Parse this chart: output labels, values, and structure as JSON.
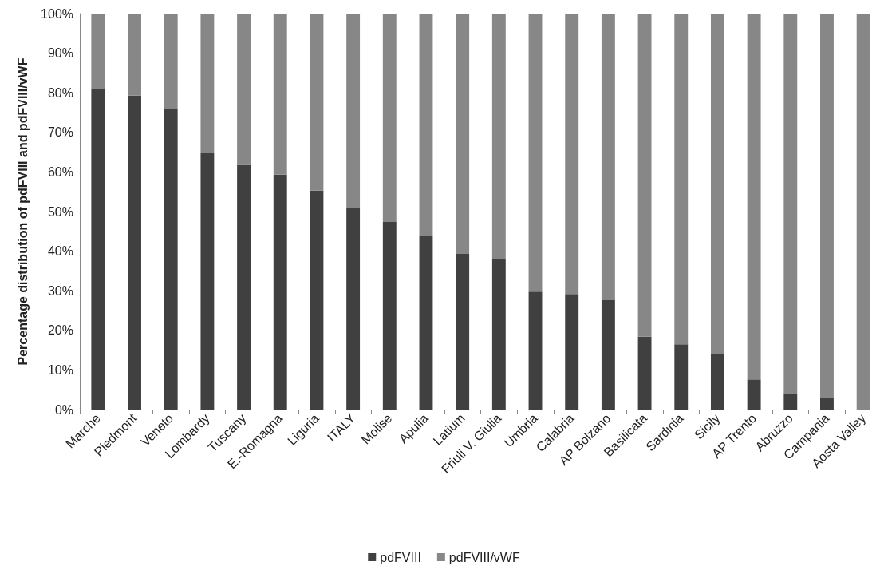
{
  "chart_data": {
    "type": "bar",
    "stacked": true,
    "ylabel": "Percentage distribution of pdFVIII and pdFVIII/vWF",
    "categories": [
      "Marche",
      "Piedmont",
      "Veneto",
      "Lombardy",
      "Tuscany",
      "E.-Romagna",
      "Liguria",
      "ITALY",
      "Molise",
      "Apulia",
      "Latium",
      "Friuli V. Giulia",
      "Umbria",
      "Calabria",
      "AP Bolzano",
      "Basilicata",
      "Sardinia",
      "Sicily",
      "AP Trento",
      "Abruzzo",
      "Campania",
      "Aosta Valley"
    ],
    "series": [
      {
        "name": "pdFVIII",
        "color": "#404040",
        "values": [
          81.0,
          79.3,
          76.0,
          64.7,
          61.8,
          59.3,
          55.3,
          50.8,
          47.4,
          43.8,
          39.3,
          37.9,
          29.8,
          29.2,
          27.6,
          18.4,
          16.5,
          14.1,
          7.6,
          3.9,
          2.9,
          0
        ]
      },
      {
        "name": "pdFVIII/vWF",
        "color": "#878787",
        "values": [
          19.0,
          20.7,
          24.0,
          35.3,
          38.2,
          40.7,
          44.7,
          49.2,
          52.6,
          56.2,
          60.7,
          62.1,
          70.2,
          70.8,
          72.4,
          81.6,
          83.5,
          85.9,
          92.4,
          96.1,
          97.1,
          100
        ]
      }
    ],
    "ylim": [
      0,
      100
    ],
    "yticks": [
      {
        "value": 0,
        "label": "0%"
      },
      {
        "value": 10,
        "label": "10%"
      },
      {
        "value": 20,
        "label": "20%"
      },
      {
        "value": 30,
        "label": "30%"
      },
      {
        "value": 40,
        "label": "40%"
      },
      {
        "value": 50,
        "label": "50%"
      },
      {
        "value": 60,
        "label": "60%"
      },
      {
        "value": 70,
        "label": "70%"
      },
      {
        "value": 80,
        "label": "80%"
      },
      {
        "value": 90,
        "label": "90%"
      },
      {
        "value": 100,
        "label": "100%"
      }
    ],
    "grid": "y",
    "legend": "bottom"
  }
}
